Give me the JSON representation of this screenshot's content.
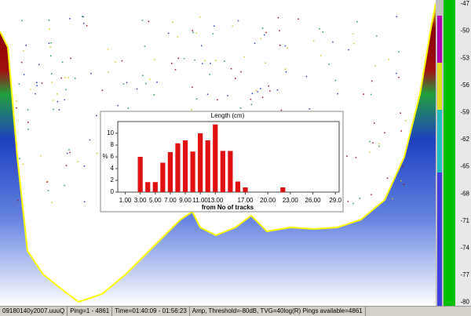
{
  "status_bar": [
    "09180140y2007.uuuQ",
    "Ping=1 - 4861",
    "Time=01:40:09 - 01:56:23",
    "Amp, Threshold=-80dB, TVG=40log(R) Pings available=4861"
  ],
  "color_scale": [
    "-47",
    "-50",
    "-53",
    "-56",
    "-59",
    "-62",
    "-65",
    "-68",
    "-71",
    "-74",
    "-77",
    "-80"
  ],
  "chart_data": {
    "type": "bar",
    "title": "Length (cm)",
    "x_label": "from No of tracks",
    "y_label": "%",
    "x": [
      3,
      4,
      5,
      6,
      7,
      8,
      9,
      10,
      11,
      12,
      13,
      14,
      15,
      16,
      17,
      22
    ],
    "values": [
      6,
      1.7,
      1.7,
      5,
      6.8,
      8.3,
      8.8,
      6.9,
      10,
      8.8,
      11.5,
      7,
      7,
      1.8,
      0.8,
      0.8
    ],
    "color": "#e01010",
    "xlim": [
      0,
      29.5
    ],
    "xticks": [
      {
        "value": 1,
        "label": "1.00"
      },
      {
        "value": 3,
        "label": "3.00"
      },
      {
        "value": 5,
        "label": "5.00"
      },
      {
        "value": 7,
        "label": "7.00"
      },
      {
        "value": 9,
        "label": "9.00"
      },
      {
        "value": 11,
        "label": "11.00"
      },
      {
        "value": 13,
        "label": "13.00"
      },
      {
        "value": 17,
        "label": "17.00"
      },
      {
        "value": 20,
        "label": "20.00"
      },
      {
        "value": 23,
        "label": "23.00"
      },
      {
        "value": 26,
        "label": "26.00"
      },
      {
        "value": 29,
        "label": "29.0"
      }
    ],
    "ylim": [
      0,
      12
    ],
    "yticks": [
      0,
      2,
      4,
      6,
      8,
      10
    ],
    "grid": false
  }
}
